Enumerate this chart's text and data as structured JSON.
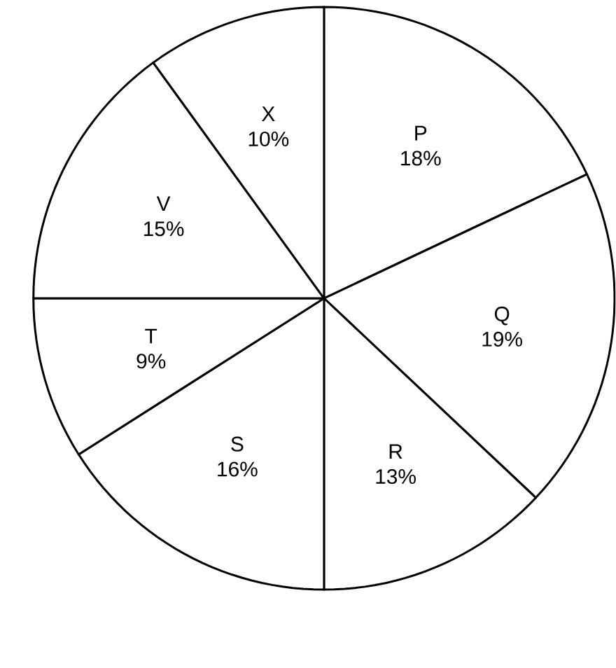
{
  "chart_data": {
    "type": "pie",
    "categories": [
      "P",
      "Q",
      "R",
      "S",
      "T",
      "V",
      "X"
    ],
    "values": [
      18,
      19,
      13,
      16,
      9,
      15,
      10
    ],
    "value_labels": [
      "18%",
      "19%",
      "13%",
      "16%",
      "9%",
      "15%",
      "10%"
    ],
    "colors": [
      "#ffffff",
      "#ffffff",
      "#ffffff",
      "#ffffff",
      "#ffffff",
      "#ffffff",
      "#ffffff"
    ]
  }
}
